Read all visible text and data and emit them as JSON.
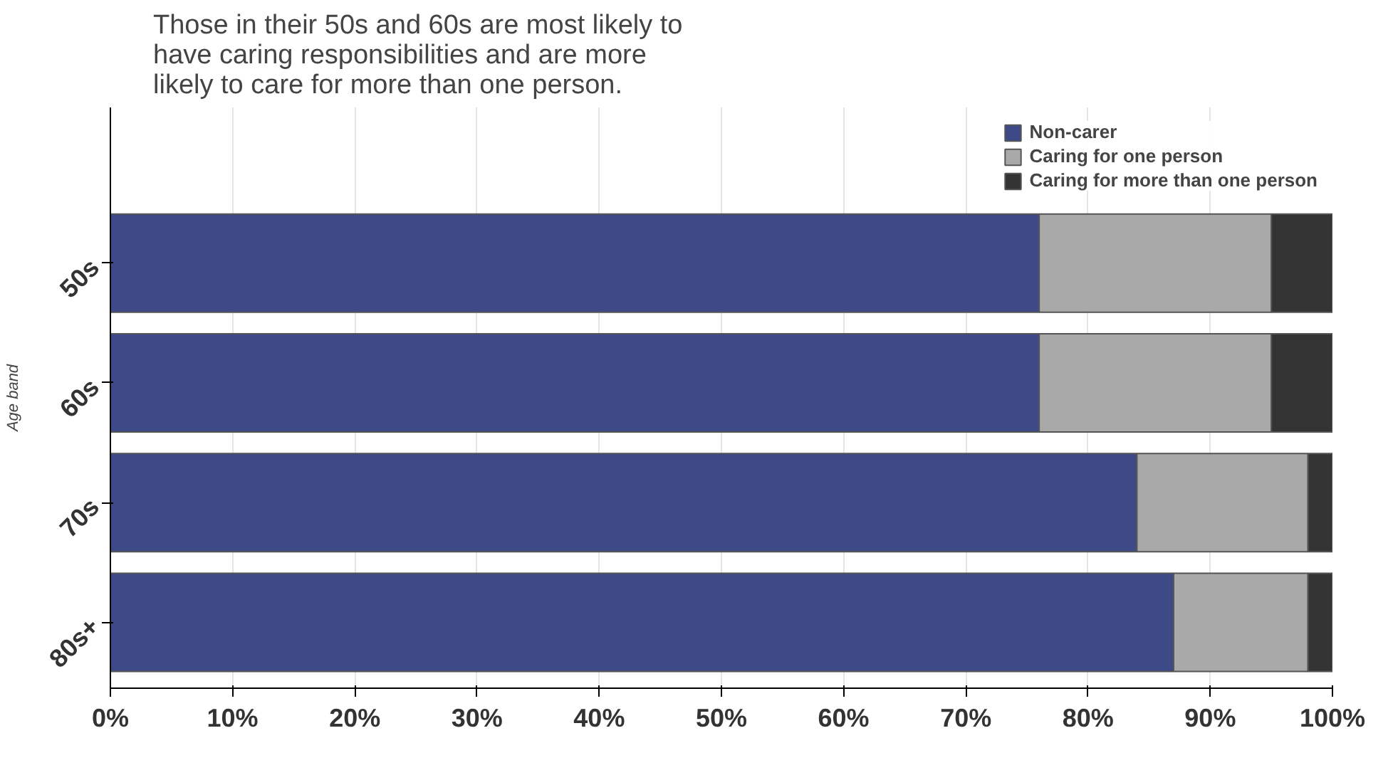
{
  "chart_data": {
    "type": "bar",
    "orientation": "horizontal",
    "stacked": true,
    "title": "Those in their 50s and 60s are most likely to have caring responsibilities and are more likely to care for more than one person.",
    "ylabel": "Age band",
    "categories": [
      "50s",
      "60s",
      "70s",
      "80s+"
    ],
    "series": [
      {
        "name": "Non-carer",
        "color": "#3d4a87",
        "values": [
          76,
          76,
          84,
          87
        ]
      },
      {
        "name": "Caring for one person",
        "color": "#a9a9a9",
        "values": [
          19,
          19,
          14,
          11
        ]
      },
      {
        "name": "Caring for more than one person",
        "color": "#333333",
        "values": [
          5,
          5,
          2,
          2
        ]
      }
    ],
    "xlim": [
      0,
      100
    ],
    "xticks": [
      {
        "value": 0,
        "label": "0%"
      },
      {
        "value": 10,
        "label": "10%"
      },
      {
        "value": 20,
        "label": "20%"
      },
      {
        "value": 30,
        "label": "30%"
      },
      {
        "value": 40,
        "label": "40%"
      },
      {
        "value": 50,
        "label": "50%"
      },
      {
        "value": 60,
        "label": "60%"
      },
      {
        "value": 70,
        "label": "70%"
      },
      {
        "value": 80,
        "label": "80%"
      },
      {
        "value": 90,
        "label": "90%"
      },
      {
        "value": 100,
        "label": "100%"
      }
    ],
    "grid": "x",
    "legend": "top right"
  }
}
